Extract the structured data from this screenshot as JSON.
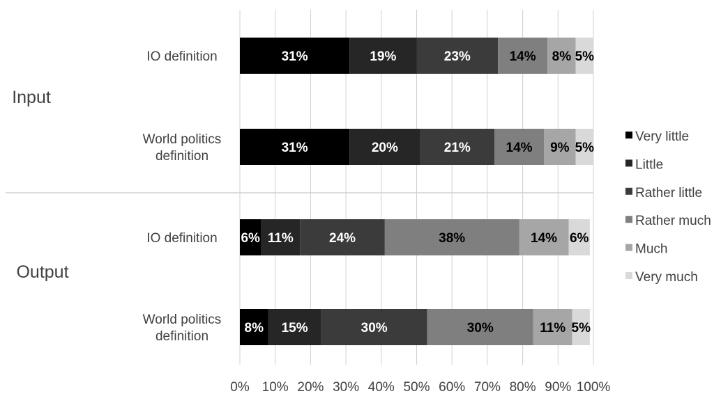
{
  "chart_data": {
    "type": "bar",
    "orientation": "horizontal",
    "stacked": true,
    "percent": true,
    "title": "",
    "xlabel": "",
    "ylabel": "",
    "xlim": [
      0,
      100
    ],
    "x_ticks": [
      "0%",
      "10%",
      "20%",
      "30%",
      "40%",
      "50%",
      "60%",
      "70%",
      "80%",
      "90%",
      "100%"
    ],
    "grid": "vertical",
    "legend_position": "right",
    "groups": [
      {
        "name": "Input",
        "categories": [
          "IO definition",
          "World politics definition"
        ]
      },
      {
        "name": "Output",
        "categories": [
          "IO definition",
          "World politics definition"
        ]
      }
    ],
    "categories": [
      {
        "group": "Input",
        "label": "IO definition"
      },
      {
        "group": "Input",
        "label": "World politics definition"
      },
      {
        "group": "Output",
        "label": "IO definition"
      },
      {
        "group": "Output",
        "label": "World politics definition"
      }
    ],
    "series": [
      {
        "name": "Very little",
        "color": "#000000",
        "label_color": "#ffffff",
        "values": [
          31,
          31,
          6,
          8
        ]
      },
      {
        "name": "Little",
        "color": "#262626",
        "label_color": "#ffffff",
        "values": [
          19,
          20,
          11,
          15
        ]
      },
      {
        "name": "Rather little",
        "color": "#3b3b3b",
        "label_color": "#ffffff",
        "values": [
          23,
          21,
          24,
          30
        ]
      },
      {
        "name": "Rather much",
        "color": "#7f7f7f",
        "label_color": "#000000",
        "values": [
          14,
          14,
          38,
          30
        ]
      },
      {
        "name": "Much",
        "color": "#a6a6a6",
        "label_color": "#000000",
        "values": [
          8,
          9,
          14,
          11
        ]
      },
      {
        "name": "Very much",
        "color": "#d9d9d9",
        "label_color": "#000000",
        "values": [
          5,
          5,
          6,
          5
        ]
      }
    ]
  }
}
